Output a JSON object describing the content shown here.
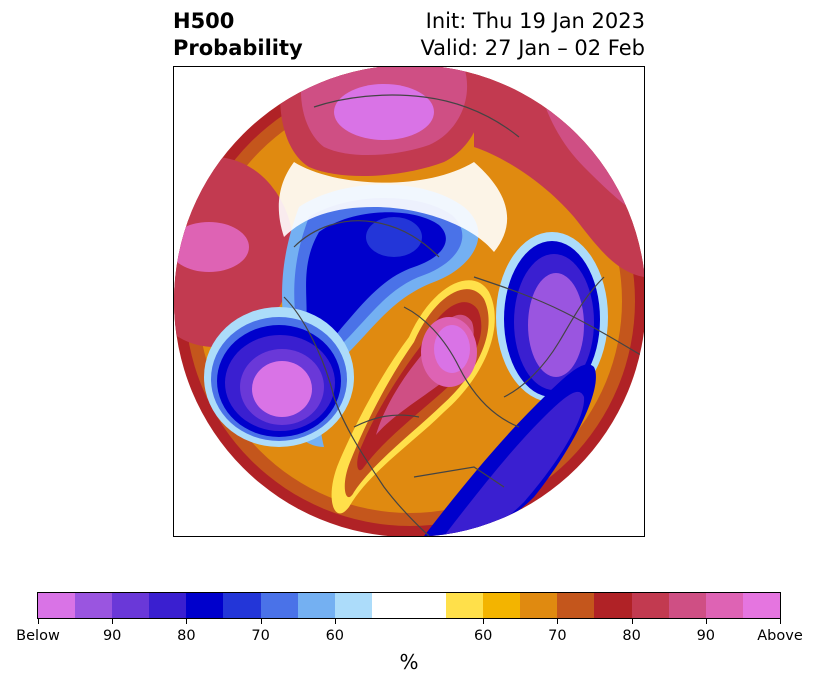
{
  "title": {
    "variable": "H500",
    "product": "Probability",
    "init": "Init: Thu 19 Jan 2023",
    "valid": "Valid: 27 Jan – 02 Feb"
  },
  "colorbar": {
    "unit_label": "%",
    "tick_labels": [
      "Below",
      "90",
      "80",
      "70",
      "60",
      "60",
      "70",
      "80",
      "90",
      "Above"
    ],
    "colors": [
      "#d973e6",
      "#9a55e0",
      "#6a38d8",
      "#3a1fd0",
      "#0000cc",
      "#2336d8",
      "#4a72e8",
      "#74b0f2",
      "#acdcfa",
      "#ffffff",
      "#ffffff",
      "#ffe04a",
      "#f3b400",
      "#e08a10",
      "#c4561c",
      "#b02226",
      "#c23a50",
      "#cf4f84",
      "#de63b4",
      "#e575e0"
    ]
  },
  "map": {
    "projection": "polar stereographic (North Pole)",
    "below_color": "#3a1fd0",
    "above_color": "#cf4f84"
  }
}
